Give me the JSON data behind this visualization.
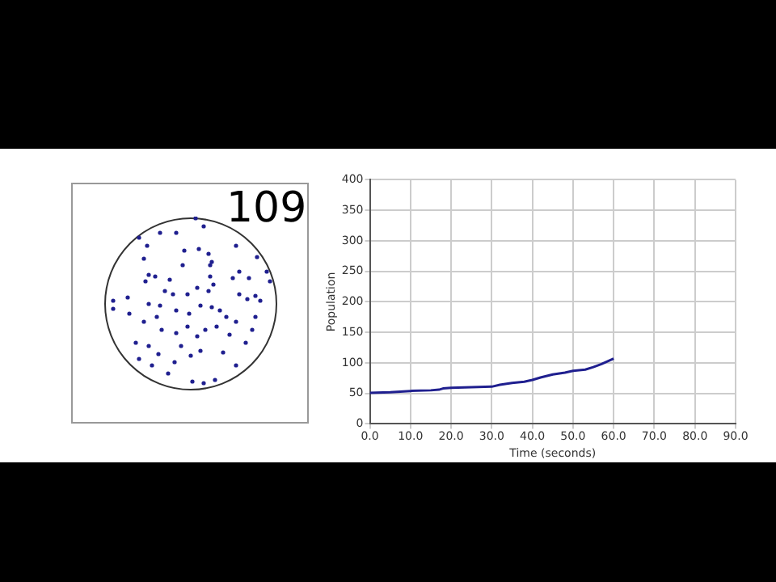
{
  "chart_data": {
    "type": "line",
    "xlabel": "Time (seconds)",
    "ylabel": "Population",
    "annotations": [
      "109"
    ],
    "x": [
      0,
      5,
      10,
      15,
      17,
      18,
      20,
      25,
      30,
      32,
      35,
      38,
      40,
      42,
      45,
      48,
      50,
      53,
      55,
      57,
      60
    ],
    "series": [
      {
        "color": "#1f1f8f",
        "values": [
          51,
          52,
          54,
          55,
          56,
          58,
          59,
          60,
          61,
          64,
          67,
          69,
          72,
          76,
          81,
          84,
          87,
          89,
          93,
          98,
          107
        ]
      }
    ],
    "xlim": [
      0,
      90
    ],
    "xticks": [
      {
        "value": 0,
        "label": "0.0"
      },
      {
        "value": 10,
        "label": "10.0"
      },
      {
        "value": 20,
        "label": "20.0"
      },
      {
        "value": 30,
        "label": "30.0"
      },
      {
        "value": 40,
        "label": "40.0"
      },
      {
        "value": 50,
        "label": "50.0"
      },
      {
        "value": 60,
        "label": "60.0"
      },
      {
        "value": 70,
        "label": "70.0"
      },
      {
        "value": 80,
        "label": "80.0"
      },
      {
        "value": 90,
        "label": "90.0"
      }
    ],
    "ylim": [
      0,
      400
    ],
    "yticks": [
      0,
      50,
      100,
      150,
      200,
      250,
      300,
      350,
      400
    ],
    "grid": true,
    "legend": false,
    "marker": "none",
    "line_style": "solid"
  }
}
